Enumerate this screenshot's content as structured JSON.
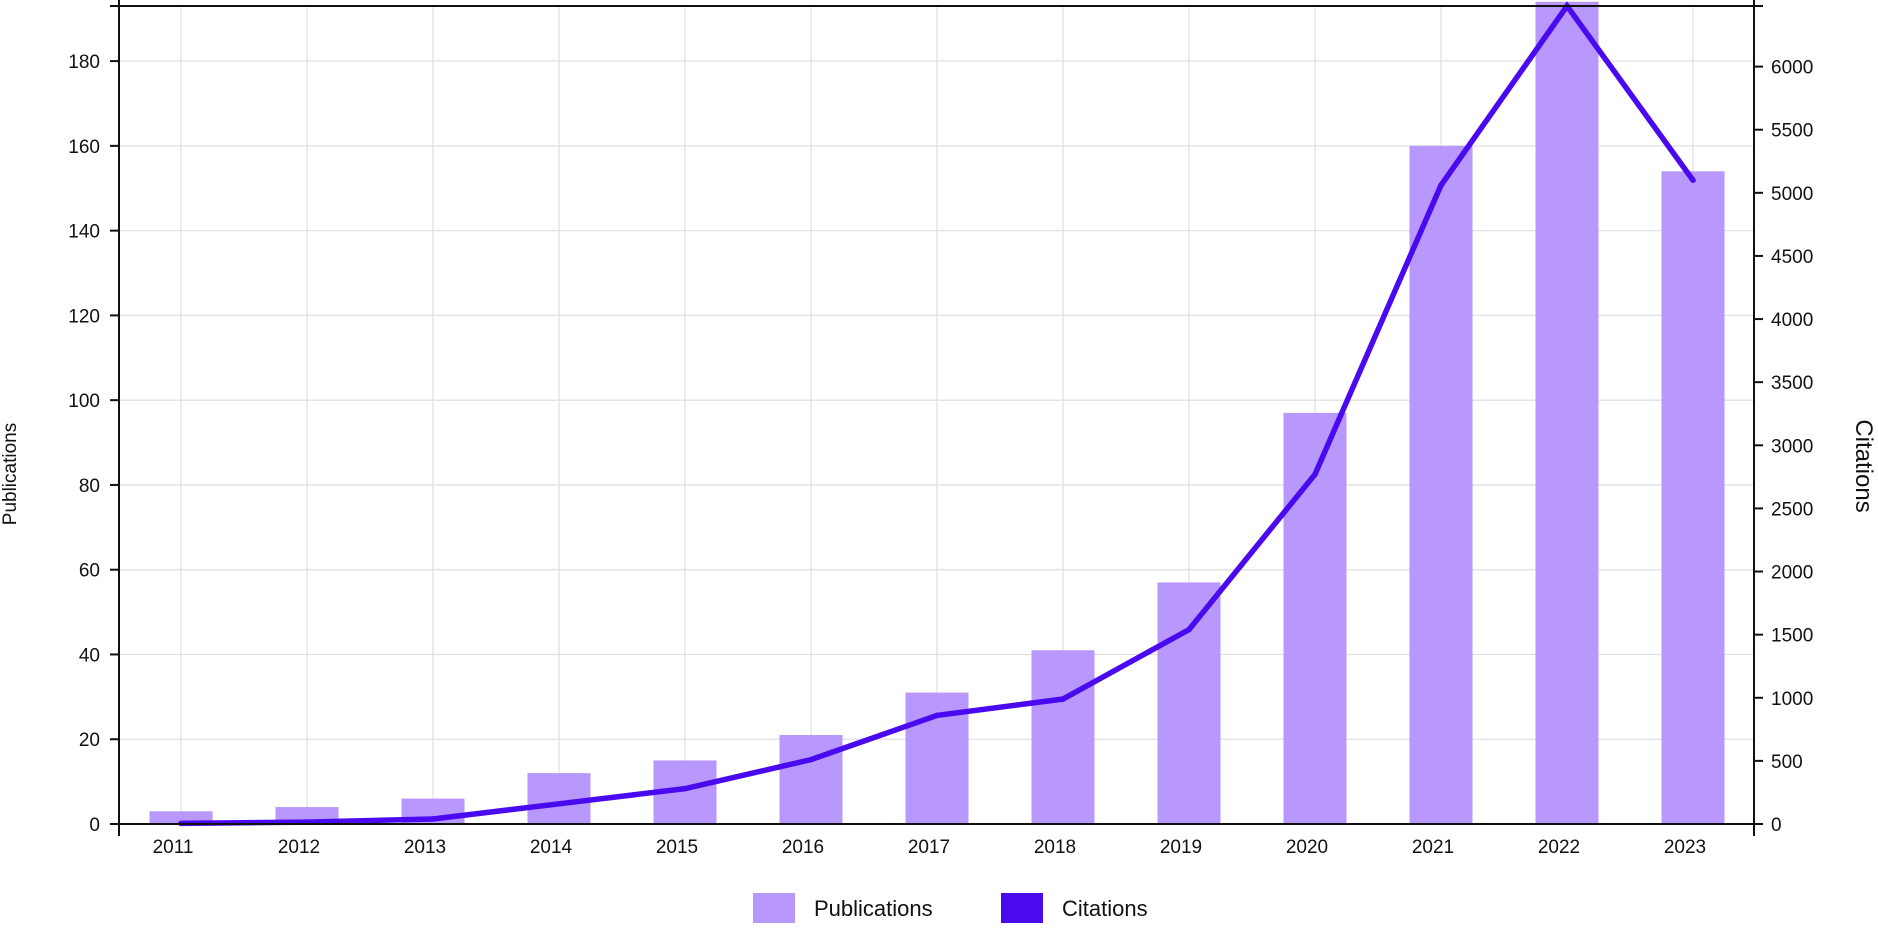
{
  "chart_data": {
    "type": "bar",
    "categories": [
      "2011",
      "2012",
      "2013",
      "2014",
      "2015",
      "2016",
      "2017",
      "2018",
      "2019",
      "2020",
      "2021",
      "2022",
      "2023"
    ],
    "series": [
      {
        "name": "Publications",
        "type": "bar",
        "axis": "left",
        "color": "#b898fc",
        "values": [
          3,
          4,
          6,
          12,
          15,
          21,
          31,
          41,
          57,
          97,
          160,
          194,
          154
        ]
      },
      {
        "name": "Citations",
        "type": "line",
        "axis": "right",
        "color": "#4a0af0",
        "values": [
          5,
          15,
          40,
          160,
          280,
          510,
          860,
          990,
          1540,
          2770,
          5060,
          6480,
          5100
        ]
      }
    ],
    "title": "",
    "xlabel": "",
    "ylabel": "Publications",
    "ylabel_right": "Citations",
    "ylim": [
      0,
      193
    ],
    "ylim_right": [
      0,
      6480
    ],
    "yticks": [
      0,
      20,
      40,
      60,
      80,
      100,
      120,
      140,
      160,
      180
    ],
    "yticks_right": [
      0,
      500,
      1000,
      1500,
      2000,
      2500,
      3000,
      3500,
      4000,
      4500,
      5000,
      5500,
      6000
    ],
    "grid": true,
    "legend_position": "bottom-center"
  }
}
